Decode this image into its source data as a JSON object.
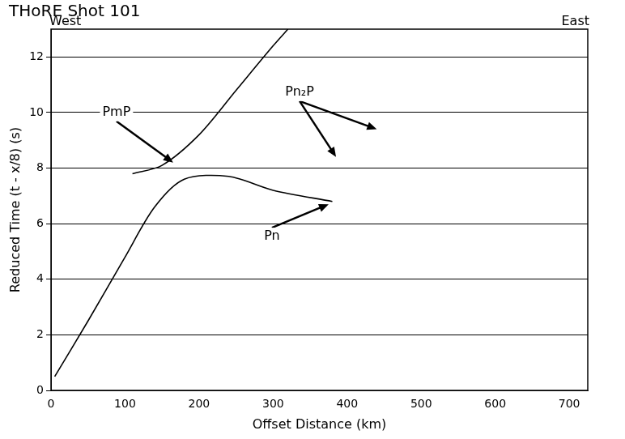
{
  "chart_data": {
    "type": "line",
    "title": "THoRE Shot 101",
    "side_labels": {
      "left": "West",
      "right": "East"
    },
    "x_label": "Offset Distance (km)",
    "y_label": "Reduced Time (t - x/8) (s)",
    "xlim": [
      0,
      725
    ],
    "xticks": [
      0,
      100,
      200,
      300,
      400,
      500,
      600,
      700
    ],
    "ylim": [
      0,
      13
    ],
    "yticks": [
      0,
      2,
      4,
      6,
      8,
      10,
      12
    ],
    "grid": true,
    "series": [
      {
        "color": "#000000",
        "x": [
          5,
          50,
          100,
          140,
          180,
          240,
          300,
          380
        ],
        "values": [
          0.5,
          2.5,
          4.8,
          6.6,
          7.6,
          7.7,
          7.2,
          6.8
        ]
      },
      {
        "color": "#000000",
        "x": [
          110,
          150,
          200,
          250,
          300,
          320
        ],
        "values": [
          7.8,
          8.1,
          9.2,
          10.8,
          12.4,
          13
        ]
      }
    ],
    "annotations": [
      {
        "text": "PmP",
        "targets": [
          [
            165,
            8.2
          ]
        ]
      },
      {
        "text": "Pn₂P",
        "targets": [
          [
            385,
            8.4
          ],
          [
            440,
            9.4
          ]
        ]
      },
      {
        "text": "Pn",
        "targets": [
          [
            375,
            6.7
          ]
        ]
      }
    ]
  }
}
